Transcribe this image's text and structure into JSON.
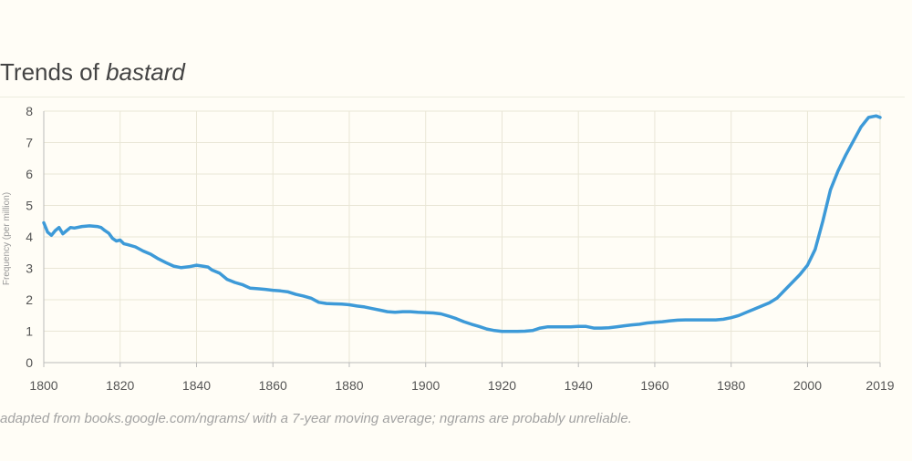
{
  "title": {
    "prefix": "Trends of ",
    "word": "bastard"
  },
  "caption": "adapted from books.google.com/ngrams/ with a 7-year moving average; ngrams are probably unreliable.",
  "colors": {
    "line": "#3d9ad8",
    "grid": "#e9e6d6",
    "axis": "#bbbbbb",
    "tick_text": "#555555",
    "background": "#fffdf6"
  },
  "chart_data": {
    "type": "line",
    "title": "Trends of bastard",
    "xlabel": "",
    "ylabel": "Frequency (per million)",
    "xlim": [
      1800,
      2019
    ],
    "ylim": [
      0,
      8
    ],
    "x_ticks": [
      "1800",
      "1820",
      "1840",
      "1860",
      "1880",
      "1900",
      "1920",
      "1940",
      "1960",
      "1980",
      "2000",
      "2019"
    ],
    "y_ticks": [
      "0",
      "1",
      "2",
      "3",
      "4",
      "5",
      "6",
      "7",
      "8"
    ],
    "grid": true,
    "legend": "none",
    "series": [
      {
        "x": [
          1800,
          1801,
          1802,
          1803,
          1804,
          1805,
          1806,
          1807,
          1808,
          1810,
          1812,
          1814,
          1815,
          1816,
          1817,
          1818,
          1819,
          1820,
          1821,
          1822,
          1824,
          1826,
          1828,
          1830,
          1832,
          1834,
          1836,
          1838,
          1840,
          1842,
          1843,
          1844,
          1846,
          1848,
          1850,
          1852,
          1854,
          1856,
          1858,
          1860,
          1862,
          1864,
          1866,
          1868,
          1870,
          1872,
          1874,
          1876,
          1878,
          1880,
          1882,
          1884,
          1886,
          1888,
          1890,
          1892,
          1894,
          1896,
          1898,
          1900,
          1902,
          1904,
          1906,
          1908,
          1910,
          1912,
          1914,
          1916,
          1918,
          1920,
          1922,
          1924,
          1926,
          1928,
          1930,
          1932,
          1934,
          1936,
          1938,
          1940,
          1942,
          1944,
          1946,
          1948,
          1950,
          1952,
          1954,
          1956,
          1958,
          1960,
          1962,
          1964,
          1966,
          1968,
          1970,
          1972,
          1974,
          1976,
          1978,
          1980,
          1982,
          1984,
          1986,
          1988,
          1990,
          1992,
          1994,
          1996,
          1998,
          2000,
          2002,
          2004,
          2006,
          2008,
          2010,
          2012,
          2014,
          2016,
          2018,
          2019
        ],
        "y": [
          4.45,
          4.15,
          4.05,
          4.2,
          4.3,
          4.1,
          4.2,
          4.3,
          4.28,
          4.33,
          4.35,
          4.33,
          4.3,
          4.2,
          4.12,
          3.95,
          3.87,
          3.9,
          3.78,
          3.75,
          3.68,
          3.55,
          3.45,
          3.3,
          3.18,
          3.07,
          3.02,
          3.05,
          3.1,
          3.06,
          3.04,
          2.95,
          2.85,
          2.65,
          2.55,
          2.48,
          2.37,
          2.35,
          2.33,
          2.3,
          2.28,
          2.25,
          2.17,
          2.12,
          2.05,
          1.92,
          1.88,
          1.87,
          1.86,
          1.84,
          1.8,
          1.77,
          1.72,
          1.67,
          1.62,
          1.6,
          1.62,
          1.62,
          1.6,
          1.59,
          1.58,
          1.55,
          1.48,
          1.4,
          1.3,
          1.22,
          1.15,
          1.07,
          1.02,
          0.99,
          0.99,
          0.99,
          1.0,
          1.02,
          1.1,
          1.14,
          1.14,
          1.14,
          1.14,
          1.15,
          1.15,
          1.1,
          1.1,
          1.11,
          1.14,
          1.17,
          1.2,
          1.22,
          1.26,
          1.28,
          1.3,
          1.33,
          1.35,
          1.36,
          1.36,
          1.36,
          1.36,
          1.36,
          1.38,
          1.43,
          1.5,
          1.6,
          1.7,
          1.8,
          1.9,
          2.05,
          2.3,
          2.55,
          2.8,
          3.1,
          3.6,
          4.5,
          5.5,
          6.1,
          6.6,
          7.05,
          7.5,
          7.8,
          7.85,
          7.8
        ]
      }
    ]
  }
}
